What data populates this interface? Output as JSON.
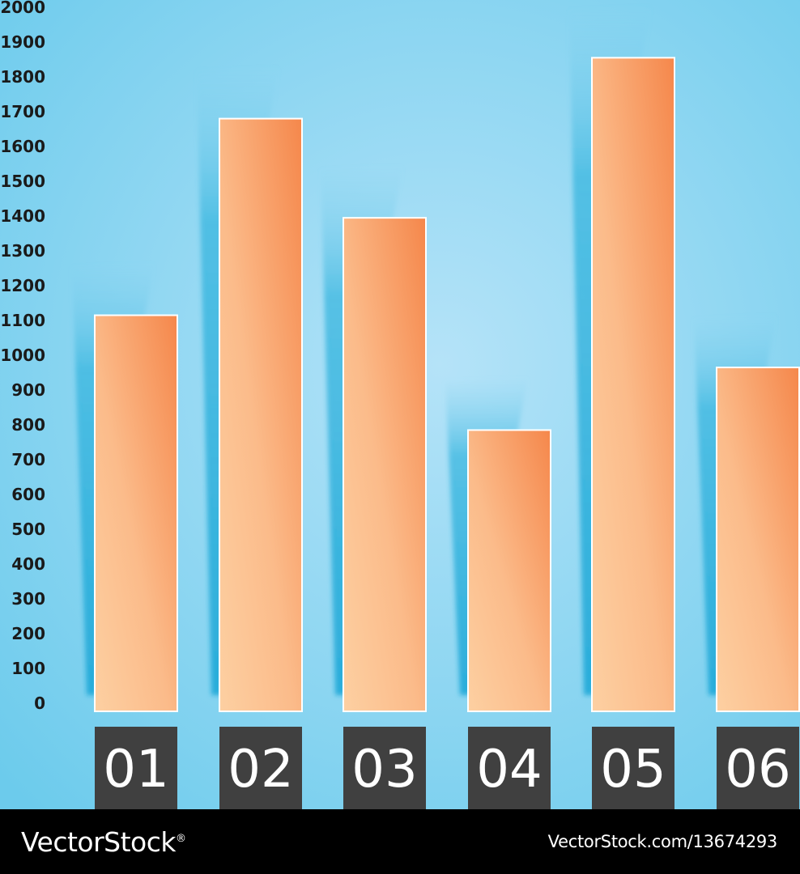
{
  "chart_data": {
    "type": "bar",
    "categories": [
      "01",
      "02",
      "03",
      "04",
      "05",
      "06"
    ],
    "values": [
      1115,
      1680,
      1395,
      785,
      1855,
      965
    ],
    "yticks": [
      0,
      100,
      200,
      300,
      400,
      500,
      600,
      700,
      800,
      900,
      1000,
      1100,
      1200,
      1300,
      1400,
      1500,
      1600,
      1700,
      1800,
      1900,
      2000
    ],
    "ylim": [
      0,
      2000
    ],
    "title": "",
    "xlabel": "",
    "ylabel": "",
    "grid": false
  },
  "colors": {
    "background_center": "#b5e3f8",
    "background_edge": "#6ccbec",
    "bar_light": "#fdd0a2",
    "bar_dark": "#f5874b",
    "bar_border": "#ffffff",
    "bar_shadow": "#33b4de",
    "label_box": "#404040",
    "footer": "#000000"
  },
  "footer": {
    "brand": "VectorStock",
    "registered": "®",
    "credit": "VectorStock.com/13674293"
  }
}
